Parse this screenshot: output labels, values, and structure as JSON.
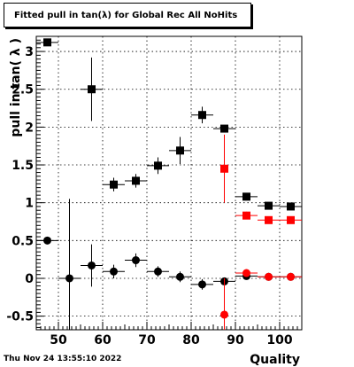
{
  "canvas": {
    "title": "Fitted pull in tan(λ) for Global Rec All NoHits",
    "date": "Thu Nov 24 13:55:10 2022"
  },
  "chart_data": {
    "type": "scatter",
    "title": "Fitted pull in tan(λ) for Global Rec All NoHits",
    "xlabel": "Quality",
    "ylabel": "pull in tan( λ )",
    "xlim": [
      45,
      105
    ],
    "ylim": [
      -0.68,
      3.2
    ],
    "grid": true,
    "x_ticks": [
      50,
      60,
      70,
      80,
      90,
      100
    ],
    "x_tick_labels": [
      "50",
      "60",
      "70",
      "80",
      "90",
      "100"
    ],
    "y_ticks": [
      -0.5,
      0,
      0.5,
      1,
      1.5,
      2,
      2.5,
      3
    ],
    "y_tick_labels": [
      "-0.5",
      "0",
      "0.5",
      "1",
      "1.5",
      "2",
      "2.5",
      "3"
    ],
    "series": [
      {
        "color": "#000000",
        "marker": "square",
        "points": [
          {
            "x": 47.5,
            "y": 3.12,
            "xerr": 2.5,
            "yerr": 0.0
          },
          {
            "x": 57.5,
            "y": 2.5,
            "xerr": 2.5,
            "yerr": 0.42
          },
          {
            "x": 62.5,
            "y": 1.24,
            "xerr": 2.5,
            "yerr": 0.09
          },
          {
            "x": 67.5,
            "y": 1.29,
            "xerr": 2.5,
            "yerr": 0.09
          },
          {
            "x": 72.5,
            "y": 1.49,
            "xerr": 2.5,
            "yerr": 0.11
          },
          {
            "x": 77.5,
            "y": 1.69,
            "xerr": 2.5,
            "yerr": 0.18
          },
          {
            "x": 82.5,
            "y": 2.16,
            "xerr": 2.5,
            "yerr": 0.11
          },
          {
            "x": 87.5,
            "y": 1.98,
            "xerr": 2.5,
            "yerr": 0.03
          },
          {
            "x": 92.5,
            "y": 1.08,
            "xerr": 2.5,
            "yerr": 0.02
          },
          {
            "x": 97.5,
            "y": 0.96,
            "xerr": 2.5,
            "yerr": 0.02
          },
          {
            "x": 102.5,
            "y": 0.95,
            "xerr": 2.5,
            "yerr": 0.01
          }
        ]
      },
      {
        "color": "#000000",
        "marker": "circle",
        "points": [
          {
            "x": 47.5,
            "y": 0.5,
            "xerr": 2.5,
            "yerr": 0.0
          },
          {
            "x": 52.5,
            "y": 0.0,
            "xerr": 2.5,
            "yerr": 1.05
          },
          {
            "x": 57.5,
            "y": 0.17,
            "xerr": 2.5,
            "yerr": 0.28
          },
          {
            "x": 62.5,
            "y": 0.09,
            "xerr": 2.5,
            "yerr": 0.09
          },
          {
            "x": 67.5,
            "y": 0.24,
            "xerr": 2.5,
            "yerr": 0.09
          },
          {
            "x": 72.5,
            "y": 0.09,
            "xerr": 2.5,
            "yerr": 0.07
          },
          {
            "x": 77.5,
            "y": 0.02,
            "xerr": 2.5,
            "yerr": 0.07
          },
          {
            "x": 82.5,
            "y": -0.08,
            "xerr": 2.5,
            "yerr": 0.07
          },
          {
            "x": 87.5,
            "y": -0.04,
            "xerr": 2.5,
            "yerr": 0.03
          },
          {
            "x": 92.5,
            "y": 0.03,
            "xerr": 2.5,
            "yerr": 0.02
          },
          {
            "x": 97.5,
            "y": 0.02,
            "xerr": 2.5,
            "yerr": 0.01
          },
          {
            "x": 102.5,
            "y": 0.02,
            "xerr": 2.5,
            "yerr": 0.01
          }
        ]
      },
      {
        "color": "#ff0000",
        "marker": "square",
        "points": [
          {
            "x": 87.5,
            "y": 1.45,
            "xerr": 0.0,
            "yerr": 0.45
          },
          {
            "x": 92.5,
            "y": 0.83,
            "xerr": 2.5,
            "yerr": 0.05
          },
          {
            "x": 97.5,
            "y": 0.77,
            "xerr": 2.5,
            "yerr": 0.02
          },
          {
            "x": 102.5,
            "y": 0.77,
            "xerr": 2.5,
            "yerr": 0.02
          }
        ]
      },
      {
        "color": "#ff0000",
        "marker": "circle",
        "points": [
          {
            "x": 87.5,
            "y": -0.48,
            "xerr": 0.0,
            "yerr": 0.48
          },
          {
            "x": 92.5,
            "y": 0.07,
            "xerr": 2.5,
            "yerr": 0.03
          },
          {
            "x": 97.5,
            "y": 0.02,
            "xerr": 2.5,
            "yerr": 0.02
          },
          {
            "x": 102.5,
            "y": 0.02,
            "xerr": 2.5,
            "yerr": 0.02
          }
        ]
      }
    ]
  }
}
